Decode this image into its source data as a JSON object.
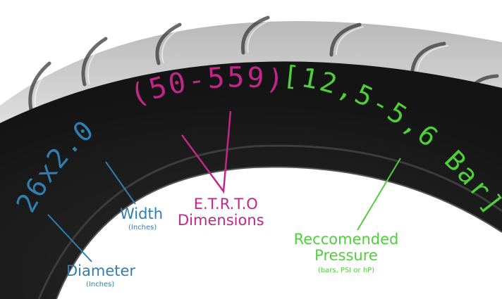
{
  "tire_markings": {
    "size": "26x2.0",
    "etrto": "(50-559)",
    "pressure": "[12,5-5,6 Bar]"
  },
  "labels": {
    "width": "Width",
    "width_unit": "(Inches)",
    "diameter": "Diameter",
    "diameter_unit": "(Inches)",
    "etrto_line1": "E.T.R.T.O",
    "etrto_line2": "Dimensions",
    "pressure_line1": "Reccomended",
    "pressure_line2": "Pressure",
    "pressure_units": "(bars, PSI or hP)"
  },
  "colors": {
    "size_blue": "#2f7fb0",
    "etrto_magenta": "#c2268a",
    "pressure_green": "#4fcf3a",
    "tire_rubber": "#1f1f1f"
  }
}
